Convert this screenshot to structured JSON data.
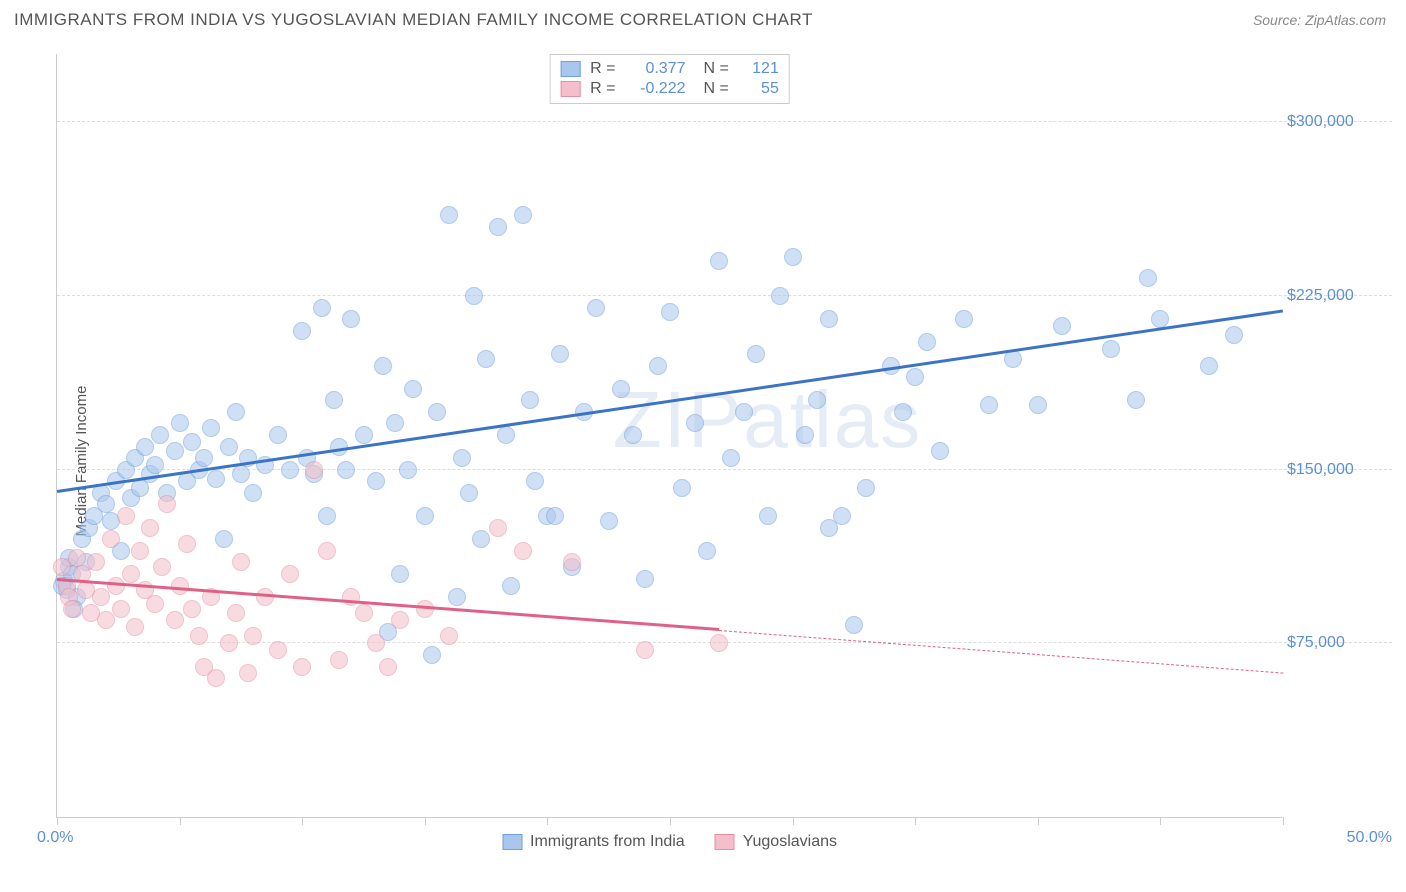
{
  "title": "IMMIGRANTS FROM INDIA VS YUGOSLAVIAN MEDIAN FAMILY INCOME CORRELATION CHART",
  "source_label": "Source: ZipAtlas.com",
  "ylabel": "Median Family Income",
  "watermark": "ZIPatlas",
  "chart": {
    "type": "scatter",
    "xlim": [
      0,
      50
    ],
    "ylim": [
      0,
      330000
    ],
    "x_axis_label_min": "0.0%",
    "x_axis_label_max": "50.0%",
    "y_ticks": [
      75000,
      150000,
      225000,
      300000
    ],
    "y_tick_labels": [
      "$75,000",
      "$150,000",
      "$225,000",
      "$300,000"
    ],
    "x_tick_positions": [
      0,
      5,
      10,
      15,
      20,
      25,
      30,
      35,
      40,
      45,
      50
    ],
    "grid_color": "#dddddd",
    "axis_color": "#cccccc",
    "background_color": "#ffffff",
    "marker_radius": 9,
    "marker_opacity": 0.55,
    "series": [
      {
        "name": "Immigrants from India",
        "fill_color": "#a9c6ec",
        "stroke_color": "#6f9fde",
        "R": "0.377",
        "N": "121",
        "trend": {
          "x1": 0,
          "y1": 140000,
          "x2": 50,
          "y2": 218000,
          "solid_until_x": 50,
          "color": "#3b74c4"
        },
        "points": [
          [
            0.3,
            102000
          ],
          [
            0.5,
            108000
          ],
          [
            0.4,
            98000
          ],
          [
            0.6,
            105000
          ],
          [
            0.8,
            95000
          ],
          [
            0.5,
            112000
          ],
          [
            0.2,
            100000
          ],
          [
            0.7,
            90000
          ],
          [
            1.0,
            120000
          ],
          [
            1.2,
            110000
          ],
          [
            1.3,
            125000
          ],
          [
            1.5,
            130000
          ],
          [
            1.8,
            140000
          ],
          [
            2.0,
            135000
          ],
          [
            2.2,
            128000
          ],
          [
            2.4,
            145000
          ],
          [
            2.6,
            115000
          ],
          [
            2.8,
            150000
          ],
          [
            3.0,
            138000
          ],
          [
            3.2,
            155000
          ],
          [
            3.4,
            142000
          ],
          [
            3.6,
            160000
          ],
          [
            3.8,
            148000
          ],
          [
            4.0,
            152000
          ],
          [
            4.2,
            165000
          ],
          [
            4.5,
            140000
          ],
          [
            4.8,
            158000
          ],
          [
            5.0,
            170000
          ],
          [
            5.3,
            145000
          ],
          [
            5.5,
            162000
          ],
          [
            5.8,
            150000
          ],
          [
            6.0,
            155000
          ],
          [
            6.3,
            168000
          ],
          [
            6.5,
            146000
          ],
          [
            6.8,
            120000
          ],
          [
            7.0,
            160000
          ],
          [
            7.3,
            175000
          ],
          [
            7.5,
            148000
          ],
          [
            7.8,
            155000
          ],
          [
            8.0,
            140000
          ],
          [
            8.5,
            152000
          ],
          [
            9.0,
            165000
          ],
          [
            9.5,
            150000
          ],
          [
            10.0,
            210000
          ],
          [
            10.2,
            155000
          ],
          [
            10.5,
            148000
          ],
          [
            10.8,
            220000
          ],
          [
            11.0,
            130000
          ],
          [
            11.3,
            180000
          ],
          [
            11.5,
            160000
          ],
          [
            11.8,
            150000
          ],
          [
            12.0,
            215000
          ],
          [
            12.5,
            165000
          ],
          [
            13.0,
            145000
          ],
          [
            13.3,
            195000
          ],
          [
            13.5,
            80000
          ],
          [
            13.8,
            170000
          ],
          [
            14.0,
            105000
          ],
          [
            14.3,
            150000
          ],
          [
            14.5,
            185000
          ],
          [
            15.0,
            130000
          ],
          [
            15.3,
            70000
          ],
          [
            15.5,
            175000
          ],
          [
            16.0,
            260000
          ],
          [
            16.3,
            95000
          ],
          [
            16.5,
            155000
          ],
          [
            16.8,
            140000
          ],
          [
            17.0,
            225000
          ],
          [
            17.3,
            120000
          ],
          [
            17.5,
            198000
          ],
          [
            18.0,
            255000
          ],
          [
            18.3,
            165000
          ],
          [
            18.5,
            100000
          ],
          [
            19.0,
            260000
          ],
          [
            19.3,
            180000
          ],
          [
            19.5,
            145000
          ],
          [
            20.0,
            130000
          ],
          [
            20.5,
            200000
          ],
          [
            21.0,
            108000
          ],
          [
            21.5,
            175000
          ],
          [
            22.0,
            220000
          ],
          [
            22.5,
            128000
          ],
          [
            23.0,
            185000
          ],
          [
            23.5,
            165000
          ],
          [
            24.0,
            103000
          ],
          [
            24.5,
            195000
          ],
          [
            25.0,
            218000
          ],
          [
            25.5,
            142000
          ],
          [
            26.0,
            170000
          ],
          [
            26.5,
            115000
          ],
          [
            27.0,
            240000
          ],
          [
            27.5,
            155000
          ],
          [
            28.0,
            175000
          ],
          [
            28.5,
            200000
          ],
          [
            29.0,
            130000
          ],
          [
            29.5,
            225000
          ],
          [
            30.0,
            242000
          ],
          [
            30.5,
            165000
          ],
          [
            31.0,
            180000
          ],
          [
            31.5,
            215000
          ],
          [
            32.0,
            130000
          ],
          [
            32.5,
            83000
          ],
          [
            33.0,
            142000
          ],
          [
            34.0,
            195000
          ],
          [
            34.5,
            175000
          ],
          [
            35.0,
            190000
          ],
          [
            35.5,
            205000
          ],
          [
            36.0,
            158000
          ],
          [
            37.0,
            215000
          ],
          [
            38.0,
            178000
          ],
          [
            39.0,
            198000
          ],
          [
            40.0,
            178000
          ],
          [
            41.0,
            212000
          ],
          [
            43.0,
            202000
          ],
          [
            44.0,
            180000
          ],
          [
            44.5,
            233000
          ],
          [
            45.0,
            215000
          ],
          [
            47.0,
            195000
          ],
          [
            48.0,
            208000
          ],
          [
            31.5,
            125000
          ],
          [
            20.3,
            130000
          ]
        ]
      },
      {
        "name": "Yugoslavians",
        "fill_color": "#f4bfca",
        "stroke_color": "#e78fa3",
        "R": "-0.222",
        "N": "55",
        "trend": {
          "x1": 0,
          "y1": 102000,
          "x2": 50,
          "y2": 62000,
          "solid_until_x": 27,
          "color": "#e16088"
        },
        "points": [
          [
            0.2,
            108000
          ],
          [
            0.4,
            100000
          ],
          [
            0.5,
            95000
          ],
          [
            0.6,
            90000
          ],
          [
            0.8,
            112000
          ],
          [
            1.0,
            105000
          ],
          [
            1.2,
            98000
          ],
          [
            1.4,
            88000
          ],
          [
            1.6,
            110000
          ],
          [
            1.8,
            95000
          ],
          [
            2.0,
            85000
          ],
          [
            2.2,
            120000
          ],
          [
            2.4,
            100000
          ],
          [
            2.6,
            90000
          ],
          [
            2.8,
            130000
          ],
          [
            3.0,
            105000
          ],
          [
            3.2,
            82000
          ],
          [
            3.4,
            115000
          ],
          [
            3.6,
            98000
          ],
          [
            3.8,
            125000
          ],
          [
            4.0,
            92000
          ],
          [
            4.3,
            108000
          ],
          [
            4.5,
            135000
          ],
          [
            4.8,
            85000
          ],
          [
            5.0,
            100000
          ],
          [
            5.3,
            118000
          ],
          [
            5.5,
            90000
          ],
          [
            5.8,
            78000
          ],
          [
            6.0,
            65000
          ],
          [
            6.3,
            95000
          ],
          [
            6.5,
            60000
          ],
          [
            7.0,
            75000
          ],
          [
            7.3,
            88000
          ],
          [
            7.5,
            110000
          ],
          [
            7.8,
            62000
          ],
          [
            8.0,
            78000
          ],
          [
            8.5,
            95000
          ],
          [
            9.0,
            72000
          ],
          [
            9.5,
            105000
          ],
          [
            10.0,
            65000
          ],
          [
            10.5,
            150000
          ],
          [
            11.0,
            115000
          ],
          [
            11.5,
            68000
          ],
          [
            12.0,
            95000
          ],
          [
            12.5,
            88000
          ],
          [
            13.0,
            75000
          ],
          [
            13.5,
            65000
          ],
          [
            14.0,
            85000
          ],
          [
            15.0,
            90000
          ],
          [
            16.0,
            78000
          ],
          [
            18.0,
            125000
          ],
          [
            19.0,
            115000
          ],
          [
            21.0,
            110000
          ],
          [
            24.0,
            72000
          ],
          [
            27.0,
            75000
          ]
        ]
      }
    ],
    "legend_bottom": [
      {
        "label": "Immigrants from India",
        "fill": "#a9c6ec",
        "stroke": "#6f9fde"
      },
      {
        "label": "Yugoslavians",
        "fill": "#f4bfca",
        "stroke": "#e78fa3"
      }
    ]
  }
}
